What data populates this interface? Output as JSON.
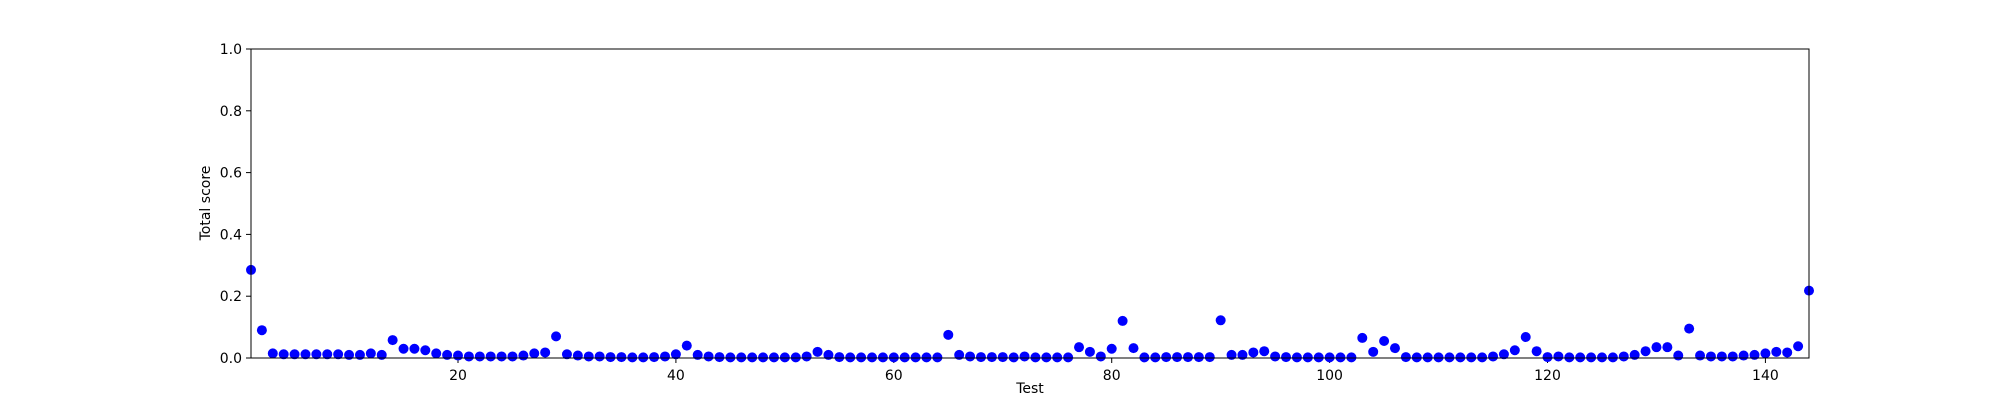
{
  "chart_data": {
    "type": "scatter",
    "xlabel": "Test",
    "ylabel": "Total score",
    "color": "#0000ff",
    "x": [
      1,
      2,
      3,
      4,
      5,
      6,
      7,
      8,
      9,
      10,
      11,
      12,
      13,
      14,
      15,
      16,
      17,
      18,
      19,
      20,
      21,
      22,
      23,
      24,
      25,
      26,
      27,
      28,
      29,
      30,
      31,
      32,
      33,
      34,
      35,
      36,
      37,
      38,
      39,
      40,
      41,
      42,
      43,
      44,
      45,
      46,
      47,
      48,
      49,
      50,
      51,
      52,
      53,
      54,
      55,
      56,
      57,
      58,
      59,
      60,
      61,
      62,
      63,
      64,
      65,
      66,
      67,
      68,
      69,
      70,
      71,
      72,
      73,
      74,
      75,
      76,
      77,
      78,
      79,
      80,
      81,
      82,
      83,
      84,
      85,
      86,
      87,
      88,
      89,
      90,
      91,
      92,
      93,
      94,
      95,
      96,
      97,
      98,
      99,
      100,
      101,
      102,
      103,
      104,
      105,
      106,
      107,
      108,
      109,
      110,
      111,
      112,
      113,
      114,
      115,
      116,
      117,
      118,
      119,
      120,
      121,
      122,
      123,
      124,
      125,
      126,
      127,
      128,
      129,
      130,
      131,
      132,
      133,
      134,
      135,
      136,
      137,
      138,
      139,
      140,
      141,
      142,
      143,
      144
    ],
    "values": [
      0.285,
      0.09,
      0.015,
      0.012,
      0.012,
      0.012,
      0.012,
      0.012,
      0.012,
      0.01,
      0.01,
      0.015,
      0.01,
      0.058,
      0.03,
      0.03,
      0.025,
      0.015,
      0.01,
      0.008,
      0.005,
      0.005,
      0.005,
      0.005,
      0.005,
      0.008,
      0.015,
      0.018,
      0.07,
      0.012,
      0.008,
      0.005,
      0.005,
      0.003,
      0.003,
      0.002,
      0.002,
      0.003,
      0.005,
      0.012,
      0.04,
      0.01,
      0.005,
      0.003,
      0.002,
      0.002,
      0.002,
      0.002,
      0.002,
      0.002,
      0.002,
      0.005,
      0.02,
      0.01,
      0.003,
      0.002,
      0.002,
      0.002,
      0.002,
      0.002,
      0.002,
      0.002,
      0.002,
      0.002,
      0.075,
      0.01,
      0.005,
      0.003,
      0.003,
      0.003,
      0.002,
      0.005,
      0.002,
      0.002,
      0.002,
      0.002,
      0.035,
      0.02,
      0.005,
      0.03,
      0.12,
      0.032,
      0.002,
      0.002,
      0.003,
      0.003,
      0.003,
      0.003,
      0.003,
      0.122,
      0.01,
      0.01,
      0.018,
      0.022,
      0.005,
      0.003,
      0.002,
      0.002,
      0.002,
      0.002,
      0.002,
      0.002,
      0.065,
      0.02,
      0.055,
      0.032,
      0.003,
      0.002,
      0.002,
      0.002,
      0.002,
      0.002,
      0.002,
      0.002,
      0.005,
      0.012,
      0.025,
      0.068,
      0.022,
      0.003,
      0.005,
      0.002,
      0.002,
      0.002,
      0.002,
      0.002,
      0.005,
      0.01,
      0.022,
      0.035,
      0.035,
      0.008,
      0.095,
      0.008,
      0.005,
      0.005,
      0.005,
      0.008,
      0.01,
      0.015,
      0.02,
      0.018,
      0.038,
      0.218
    ],
    "xlim": [
      1,
      144
    ],
    "xticks": [
      20,
      40,
      60,
      80,
      100,
      120,
      140
    ],
    "ylim": [
      0,
      1
    ],
    "yticks": [
      {
        "value": 0,
        "label": "0.0"
      },
      {
        "value": 0.2,
        "label": "0.2"
      },
      {
        "value": 0.4,
        "label": "0.4"
      },
      {
        "value": 0.6,
        "label": "0.6"
      },
      {
        "value": 0.8,
        "label": "0.8"
      },
      {
        "value": 1,
        "label": "1.0"
      }
    ]
  }
}
